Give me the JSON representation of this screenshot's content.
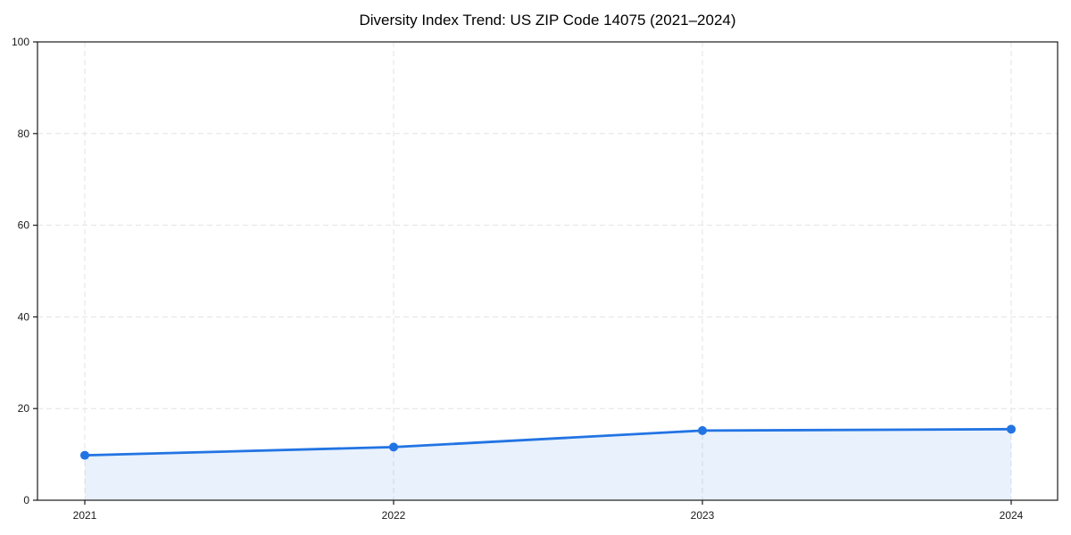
{
  "figure": {
    "background": "#ffffff"
  },
  "chart_data": {
    "type": "line",
    "title": "Diversity Index Trend: US ZIP Code 14075 (2021–2024)",
    "x": [
      2021,
      2022,
      2023,
      2024
    ],
    "xtick_labels": [
      "2021",
      "2022",
      "2023",
      "2024"
    ],
    "series": [
      {
        "name": "Diversity Index",
        "values": [
          9.8,
          11.6,
          15.2,
          15.5
        ]
      }
    ],
    "xlabel": "",
    "ylabel": "",
    "ylim": [
      0,
      100
    ],
    "yticks": [
      0,
      20,
      40,
      60,
      80,
      100
    ],
    "grid": true,
    "grid_style": "dashed",
    "legend": "none",
    "marker": "circle",
    "colors": {
      "line": "#2274e3",
      "fill": "rgba(34,116,227,0.10)",
      "grid": "#e3e3e3",
      "spine": "#1a1a1a",
      "text": "#1a1a1a"
    }
  }
}
